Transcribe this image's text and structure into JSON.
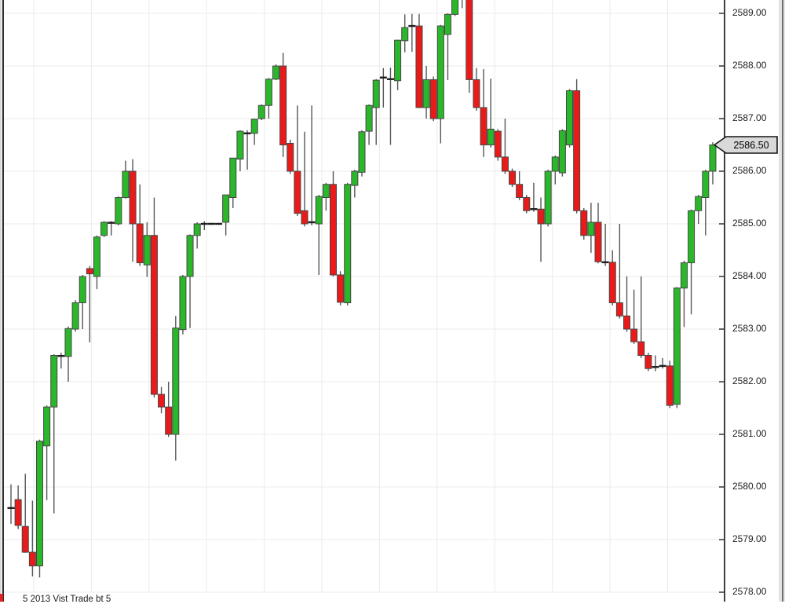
{
  "chart_data": {
    "type": "candlestick",
    "title": "",
    "bottom_label": "5 2013 Vist Trade bt 5",
    "grid": true,
    "legend": "none",
    "y_axis": {
      "side": "right",
      "min": 2578.0,
      "max": 2589.0,
      "tick_interval": 1.0,
      "labels": [
        "2589.00",
        "2588.00",
        "2587.00",
        "2586.00",
        "2585.00",
        "2584.00",
        "2583.00",
        "2582.00",
        "2581.00",
        "2580.00",
        "2579.00",
        "2578.00"
      ]
    },
    "price_marker": {
      "value": "2586.50",
      "price": 2586.5
    },
    "colors": {
      "up": "#2ab82a",
      "down": "#ea1a1a",
      "body_border": "#464646",
      "wick": "#565656",
      "doji": "#1e1e1e",
      "grid": "#ebebeb",
      "axis_border": "#3f3f3f",
      "marker_fill": "#d9d9d9",
      "marker_border": "#141414"
    },
    "candles": [
      [
        2579.6,
        2580.05,
        2579.3,
        2579.6
      ],
      [
        2579.76,
        2580.03,
        2579.2,
        2579.27
      ],
      [
        2579.25,
        2580.25,
        2578.75,
        2578.76
      ],
      [
        2578.76,
        2579.74,
        2578.3,
        2578.5
      ],
      [
        2578.5,
        2580.9,
        2578.28,
        2580.87
      ],
      [
        2580.78,
        2581.55,
        2579.75,
        2581.52
      ],
      [
        2581.52,
        2582.52,
        2579.5,
        2582.5
      ],
      [
        2582.49,
        2582.55,
        2582.25,
        2582.49
      ],
      [
        2582.48,
        2583.05,
        2582.0,
        2583.01
      ],
      [
        2583.0,
        2583.55,
        2582.95,
        2583.5
      ],
      [
        2583.5,
        2584.03,
        2583.0,
        2584.0
      ],
      [
        2584.15,
        2584.2,
        2582.75,
        2584.05
      ],
      [
        2584.0,
        2584.78,
        2583.76,
        2584.75
      ],
      [
        2584.78,
        2585.05,
        2584.75,
        2585.03
      ],
      [
        2585.02,
        2585.05,
        2584.78,
        2585.02
      ],
      [
        2585.0,
        2585.52,
        2584.97,
        2585.5
      ],
      [
        2585.5,
        2586.2,
        2585.48,
        2586.0
      ],
      [
        2586.0,
        2586.23,
        2584.28,
        2585.0
      ],
      [
        2585.0,
        2585.75,
        2584.2,
        2584.26
      ],
      [
        2584.22,
        2585.03,
        2583.99,
        2584.78
      ],
      [
        2584.78,
        2585.5,
        2581.7,
        2581.76
      ],
      [
        2581.76,
        2581.9,
        2581.4,
        2581.52
      ],
      [
        2581.52,
        2582.0,
        2580.95,
        2581.0
      ],
      [
        2581.0,
        2583.25,
        2580.5,
        2583.02
      ],
      [
        2582.99,
        2584.03,
        2582.9,
        2584.0
      ],
      [
        2584.0,
        2584.8,
        2583.02,
        2584.78
      ],
      [
        2584.78,
        2585.03,
        2584.53,
        2585.0
      ],
      [
        2585.0,
        2585.05,
        2584.88,
        2585.0
      ],
      [
        2585.0,
        2585.02,
        2584.98,
        2585.0
      ],
      [
        2585.0,
        2585.02,
        2584.98,
        2585.0
      ],
      [
        2585.03,
        2585.55,
        2584.78,
        2585.55
      ],
      [
        2585.5,
        2586.25,
        2585.3,
        2586.25
      ],
      [
        2586.23,
        2586.78,
        2586.0,
        2586.76
      ],
      [
        2586.72,
        2586.78,
        2586.03,
        2586.72
      ],
      [
        2586.72,
        2587.0,
        2586.5,
        2586.99
      ],
      [
        2587.0,
        2587.27,
        2586.97,
        2587.25
      ],
      [
        2587.25,
        2587.77,
        2587.0,
        2587.75
      ],
      [
        2587.75,
        2588.03,
        2587.73,
        2588.0
      ],
      [
        2588.0,
        2588.25,
        2586.27,
        2586.5
      ],
      [
        2586.53,
        2586.6,
        2585.95,
        2586.0
      ],
      [
        2586.0,
        2587.25,
        2585.15,
        2585.2
      ],
      [
        2585.25,
        2586.75,
        2584.95,
        2585.0
      ],
      [
        2585.03,
        2587.25,
        2584.97,
        2585.03
      ],
      [
        2585.0,
        2585.55,
        2584.03,
        2585.52
      ],
      [
        2585.5,
        2585.78,
        2585.25,
        2585.75
      ],
      [
        2585.75,
        2586.0,
        2584.0,
        2584.03
      ],
      [
        2584.03,
        2584.1,
        2583.45,
        2583.51
      ],
      [
        2583.5,
        2585.78,
        2583.45,
        2585.75
      ],
      [
        2585.73,
        2586.03,
        2585.5,
        2586.0
      ],
      [
        2585.98,
        2586.78,
        2585.9,
        2586.75
      ],
      [
        2586.76,
        2587.27,
        2586.5,
        2587.25
      ],
      [
        2587.21,
        2587.75,
        2586.5,
        2587.73
      ],
      [
        2587.78,
        2587.96,
        2587.21,
        2587.78
      ],
      [
        2587.75,
        2587.97,
        2586.5,
        2587.75
      ],
      [
        2587.72,
        2588.5,
        2587.54,
        2588.49
      ],
      [
        2588.48,
        2588.98,
        2588.26,
        2588.73
      ],
      [
        2588.76,
        2588.99,
        2588.27,
        2588.76
      ],
      [
        2588.76,
        2588.99,
        2587.2,
        2587.21
      ],
      [
        2587.21,
        2588.0,
        2587.0,
        2587.74
      ],
      [
        2587.74,
        2587.8,
        2586.95,
        2587.0
      ],
      [
        2587.0,
        2588.78,
        2586.53,
        2588.76
      ],
      [
        2588.6,
        2589.0,
        2587.73,
        2588.98
      ],
      [
        2588.98,
        2589.5,
        2588.95,
        2589.45
      ],
      [
        2589.4,
        2589.6,
        2589.1,
        2589.4
      ],
      [
        2589.45,
        2589.5,
        2587.49,
        2587.74
      ],
      [
        2587.74,
        2587.96,
        2587.15,
        2587.21
      ],
      [
        2587.21,
        2587.94,
        2586.27,
        2586.5
      ],
      [
        2586.5,
        2587.76,
        2586.45,
        2586.8
      ],
      [
        2586.76,
        2586.8,
        2586.2,
        2586.27
      ],
      [
        2586.27,
        2587.0,
        2585.95,
        2586.0
      ],
      [
        2586.0,
        2586.05,
        2585.7,
        2585.75
      ],
      [
        2585.75,
        2586.0,
        2585.45,
        2585.5
      ],
      [
        2585.5,
        2585.55,
        2585.2,
        2585.25
      ],
      [
        2585.28,
        2585.78,
        2585.23,
        2585.28
      ],
      [
        2585.28,
        2585.5,
        2584.28,
        2585.0
      ],
      [
        2585.0,
        2586.03,
        2584.95,
        2586.0
      ],
      [
        2586.0,
        2586.3,
        2585.75,
        2586.27
      ],
      [
        2585.97,
        2586.8,
        2585.9,
        2586.77
      ],
      [
        2586.5,
        2587.56,
        2586.45,
        2587.53
      ],
      [
        2587.53,
        2587.75,
        2585.2,
        2585.25
      ],
      [
        2585.25,
        2585.3,
        2584.7,
        2584.78
      ],
      [
        2584.78,
        2585.4,
        2584.45,
        2585.03
      ],
      [
        2585.03,
        2585.4,
        2584.25,
        2584.28
      ],
      [
        2584.27,
        2585.0,
        2584.2,
        2584.27
      ],
      [
        2584.27,
        2584.5,
        2583.45,
        2583.5
      ],
      [
        2583.5,
        2585.0,
        2583.2,
        2583.25
      ],
      [
        2583.25,
        2584.0,
        2582.95,
        2583.0
      ],
      [
        2583.0,
        2583.75,
        2582.72,
        2582.76
      ],
      [
        2582.76,
        2584.0,
        2582.45,
        2582.5
      ],
      [
        2582.5,
        2582.55,
        2582.2,
        2582.25
      ],
      [
        2582.28,
        2582.5,
        2582.2,
        2582.28
      ],
      [
        2582.3,
        2582.45,
        2582.25,
        2582.3
      ],
      [
        2582.3,
        2582.4,
        2581.5,
        2581.55
      ],
      [
        2581.57,
        2583.8,
        2581.5,
        2583.78
      ],
      [
        2583.78,
        2584.3,
        2583.04,
        2584.26
      ],
      [
        2584.26,
        2585.27,
        2583.28,
        2585.25
      ],
      [
        2585.25,
        2585.55,
        2585.0,
        2585.52
      ],
      [
        2585.5,
        2586.03,
        2584.78,
        2586.0
      ],
      [
        2586.0,
        2586.55,
        2585.75,
        2586.5
      ]
    ]
  }
}
